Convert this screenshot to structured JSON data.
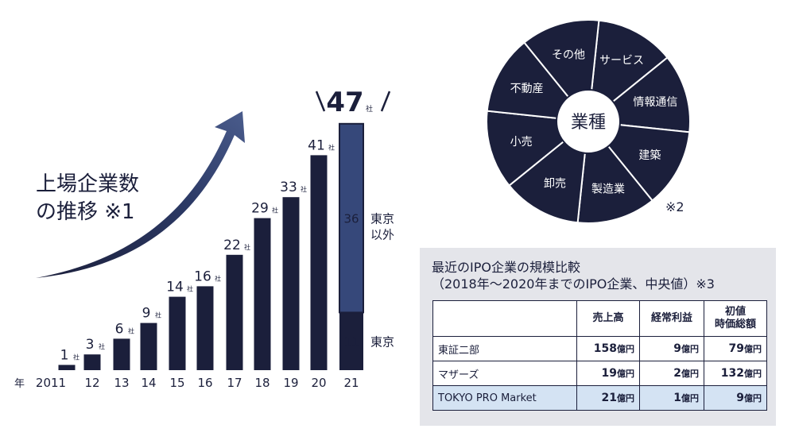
{
  "chart_data": [
    {
      "type": "bar",
      "title": "上場企業数の推移 ※1",
      "title_line1": "上場企業数",
      "title_line2": "の推移 ※1",
      "year_prefix": "年",
      "unit": "社",
      "categories": [
        "2011",
        "12",
        "13",
        "14",
        "15",
        "16",
        "17",
        "18",
        "19",
        "20",
        "21"
      ],
      "values": [
        1,
        3,
        6,
        9,
        14,
        16,
        22,
        29,
        33,
        41,
        47
      ],
      "stacked_last": {
        "category": "21",
        "segments": [
          {
            "name": "東京",
            "value": 11
          },
          {
            "name": "東京以外",
            "label_line1": "東京",
            "label_line2": "以外",
            "value": 36
          }
        ],
        "total_label": "47"
      },
      "colors": {
        "bar": "#1b1f3b",
        "segment_other": "#36487a"
      }
    },
    {
      "type": "pie",
      "center_label": "業種",
      "slices": [
        "サービス",
        "情報通信",
        "建築",
        "製造業",
        "卸売",
        "小売",
        "不動産",
        "その他"
      ],
      "note": "※2",
      "colors": {
        "fill": "#1b1f3b",
        "text": "#ffffff"
      }
    },
    {
      "type": "table",
      "title_line1": "最近のIPO企業の規模比較",
      "title_line2": "（2018年～2020年までのIPO企業、中央値）※3",
      "headers": [
        "",
        "売上高",
        "経常利益",
        "初値時価総額"
      ],
      "header3_line1": "初値",
      "header3_line2": "時価総額",
      "unit": "億円",
      "rows": [
        {
          "name": "東証二部",
          "values": [
            "158",
            "9",
            "79"
          ]
        },
        {
          "name": "マザーズ",
          "values": [
            "19",
            "2",
            "132"
          ]
        },
        {
          "name": "TOKYO PRO Market",
          "values": [
            "21",
            "1",
            "9"
          ]
        }
      ]
    }
  ]
}
